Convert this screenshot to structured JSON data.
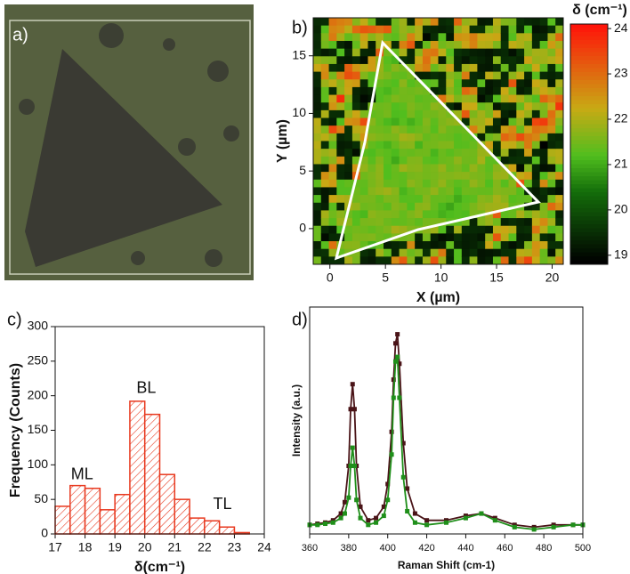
{
  "chart_data": [
    {
      "type": "image",
      "label": "a)"
    },
    {
      "type": "heatmap",
      "label": "b)",
      "x_label": "X (µm)",
      "y_label": "Y (µm)",
      "xlim": [
        -1.5,
        21
      ],
      "xticks": [
        0,
        5,
        10,
        15,
        20
      ],
      "ylim": [
        -3.1,
        18.3
      ],
      "yticks": [
        0,
        5,
        10,
        15
      ],
      "colorbar": {
        "title": "δ (cm⁻¹)",
        "lim": [
          18.8,
          24.1
        ],
        "ticks": [
          19,
          20,
          21,
          22,
          23,
          24
        ]
      }
    },
    {
      "type": "histogram",
      "label": "c)",
      "x_label": "δ(cm⁻¹)",
      "y_label": "Frequency (Counts)",
      "color": "#e8391f",
      "bins": [
        17,
        17.5,
        18,
        18.5,
        19,
        19.5,
        20,
        20.5,
        21,
        21.5,
        22,
        22.5,
        23,
        23.5
      ],
      "values": [
        40,
        70,
        66,
        35,
        57,
        192,
        173,
        86,
        50,
        23,
        19,
        10,
        2
      ],
      "xlim": [
        17,
        24
      ],
      "xticks": [
        17,
        18,
        19,
        20,
        21,
        22,
        23,
        24
      ],
      "ylim": [
        0,
        300
      ],
      "yticks": [
        0,
        50,
        100,
        150,
        200,
        250,
        300
      ],
      "annotations": [
        {
          "text": "ML",
          "x": 17.9,
          "y": 85
        },
        {
          "text": "BL",
          "x": 20.05,
          "y": 210
        },
        {
          "text": "TL",
          "x": 22.6,
          "y": 42
        }
      ]
    },
    {
      "type": "line",
      "label": "d)",
      "x_label": "Raman Shift (cm-1)",
      "y_label": "Intensity (a.u.)",
      "xlim": [
        360,
        500
      ],
      "xticks": [
        360,
        380,
        400,
        420,
        440,
        460,
        480,
        500
      ],
      "ylim": [
        0,
        1
      ],
      "x": [
        360,
        364,
        368,
        372,
        376,
        378,
        380,
        381,
        382,
        383,
        384,
        386,
        390,
        394,
        398,
        400,
        402,
        403,
        404,
        405,
        406,
        408,
        410,
        414,
        420,
        430,
        440,
        448,
        455,
        465,
        475,
        485,
        495,
        500
      ],
      "series": [
        {
          "color": "#4a1418",
          "values": [
            0.04,
            0.045,
            0.05,
            0.06,
            0.09,
            0.14,
            0.3,
            0.55,
            0.66,
            0.55,
            0.3,
            0.12,
            0.06,
            0.07,
            0.12,
            0.22,
            0.45,
            0.68,
            0.84,
            0.88,
            0.75,
            0.4,
            0.2,
            0.09,
            0.06,
            0.06,
            0.08,
            0.09,
            0.07,
            0.04,
            0.03,
            0.04,
            0.04,
            0.04
          ]
        },
        {
          "color": "#1f8f1a",
          "values": [
            0.04,
            0.04,
            0.045,
            0.05,
            0.07,
            0.09,
            0.16,
            0.3,
            0.38,
            0.3,
            0.15,
            0.07,
            0.04,
            0.05,
            0.08,
            0.15,
            0.35,
            0.6,
            0.76,
            0.78,
            0.6,
            0.25,
            0.1,
            0.05,
            0.04,
            0.05,
            0.07,
            0.09,
            0.06,
            0.03,
            0.02,
            0.03,
            0.04,
            0.04
          ]
        }
      ]
    }
  ]
}
